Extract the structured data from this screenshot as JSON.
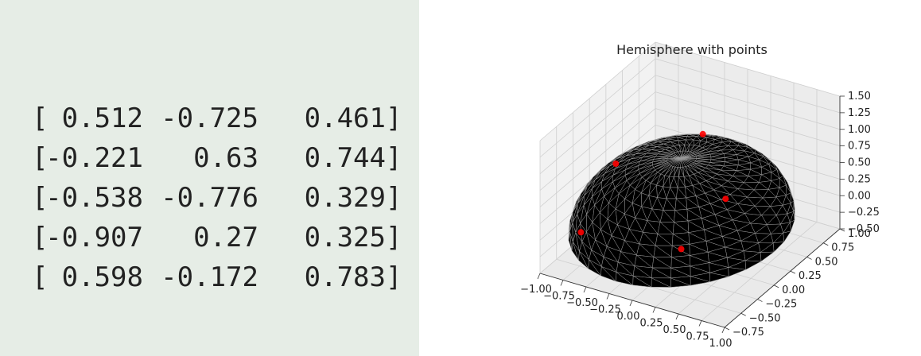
{
  "matrix": {
    "rows": [
      {
        "open": "[",
        "values": [
          "0.512",
          "-0.725",
          "0.461"
        ],
        "close": "]"
      },
      {
        "open": "[",
        "values": [
          "-0.221",
          "0.63",
          "0.744"
        ],
        "close": "]"
      },
      {
        "open": "[",
        "values": [
          "-0.538",
          "-0.776",
          "0.329"
        ],
        "close": "]"
      },
      {
        "open": "[",
        "values": [
          "-0.907",
          "0.27",
          "0.325"
        ],
        "close": "]"
      },
      {
        "open": "[",
        "values": [
          "0.598",
          "-0.172",
          "0.783"
        ],
        "close": "]"
      }
    ]
  },
  "chart_data": {
    "type": "scatter",
    "title": "Hemisphere with points",
    "surface": "hemisphere",
    "surface_color": "#000000",
    "point_color": "#ff0000",
    "x_ticks": [
      "−1.00",
      "−0.75",
      "−0.50",
      "−0.25",
      "0.00",
      "0.25",
      "0.50",
      "0.75",
      "1.00"
    ],
    "y_ticks": [
      "−0.75",
      "−0.50",
      "−0.25",
      "0.00",
      "0.25",
      "0.50",
      "0.75",
      "1.00"
    ],
    "z_ticks": [
      "−0.50",
      "−0.25",
      "0.00",
      "0.25",
      "0.50",
      "0.75",
      "1.00",
      "1.25",
      "1.50"
    ],
    "xlim": [
      -1.0,
      1.0
    ],
    "ylim": [
      -0.75,
      1.0
    ],
    "zlim": [
      -0.5,
      1.5
    ],
    "grid": true,
    "points": [
      {
        "x": 0.512,
        "y": -0.725,
        "z": 0.461
      },
      {
        "x": -0.221,
        "y": 0.63,
        "z": 0.744
      },
      {
        "x": -0.538,
        "y": -0.776,
        "z": 0.329
      },
      {
        "x": -0.907,
        "y": 0.27,
        "z": 0.325
      },
      {
        "x": 0.598,
        "y": -0.172,
        "z": 0.783
      }
    ]
  }
}
